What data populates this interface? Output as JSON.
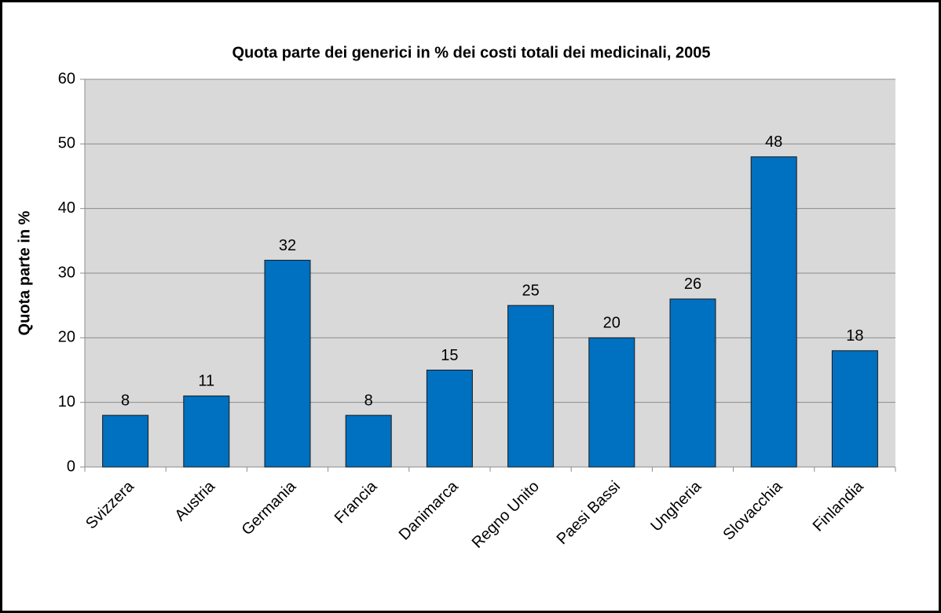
{
  "chart_data": {
    "type": "bar",
    "title": "Quota parte dei generici in % dei costi totali dei medicinali, 2005",
    "y_label": "Quota parte in %",
    "categories": [
      "Svizzera",
      "Austria",
      "Germania",
      "Francia",
      "Danimarca",
      "Regno Unito",
      "Paesi Bassi",
      "Ungheria",
      "Slovacchia",
      "Finlandia"
    ],
    "values": [
      8,
      11,
      32,
      8,
      15,
      25,
      20,
      26,
      48,
      18
    ],
    "color": "#0070c0",
    "ylim": [
      0,
      60
    ],
    "yticks": [
      0,
      10,
      20,
      30,
      40,
      50,
      60
    ],
    "grid": true
  }
}
